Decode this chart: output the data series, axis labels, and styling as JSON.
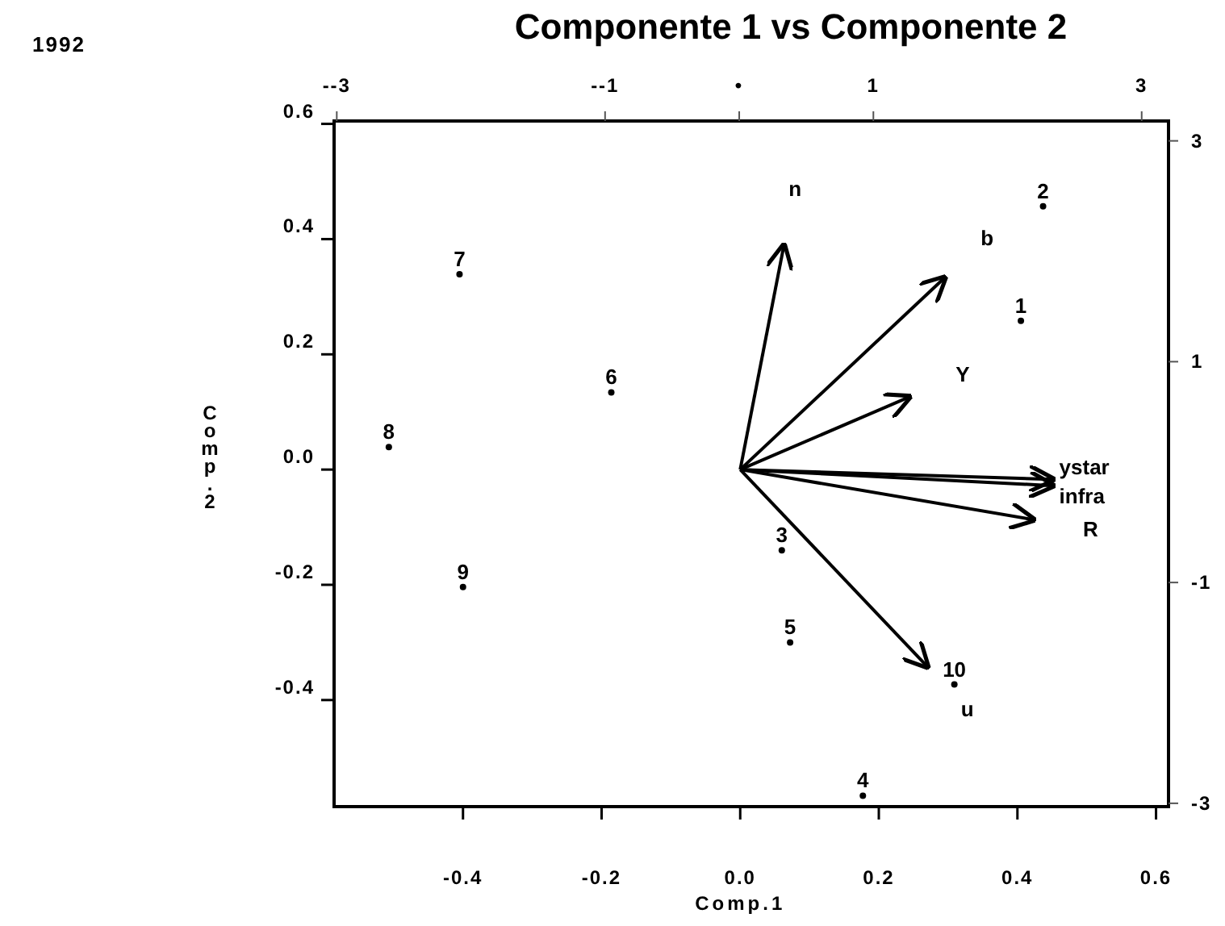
{
  "chart_data": {
    "type": "line",
    "title": "Componente 1 vs Componente 2",
    "subtitle": "1992",
    "xlabel": "Comp.1",
    "ylabel": "Comp.2",
    "xlim": [
      -0.586,
      0.618
    ],
    "ylim": [
      -0.585,
      0.605
    ],
    "xticks": [
      -0.4,
      -0.2,
      {
        "value": 0,
        "label": "0.0"
      },
      0.2,
      0.4,
      0.6
    ],
    "yticks": [
      -0.4,
      -0.2,
      {
        "value": 0,
        "label": "0.0"
      },
      0.2,
      0.4,
      0.6
    ],
    "x2lim": [
      -3.02,
      3.2
    ],
    "x2ticks": [
      {
        "value": -3,
        "label": "--3"
      },
      {
        "value": -1,
        "label": "--1"
      },
      {
        "value": 0,
        "label": "•"
      },
      1,
      3
    ],
    "y2lim": [
      -3.03,
      3.18
    ],
    "y2ticks": [
      3,
      1,
      -1,
      -3
    ],
    "grid": false,
    "legend": false,
    "annotations": [
      {
        "text": "1",
        "x": 0.405,
        "y": 0.258
      },
      {
        "text": "2",
        "x": 0.437,
        "y": 0.457
      },
      {
        "text": "3",
        "x": 0.06,
        "y": -0.14
      },
      {
        "text": "4",
        "x": 0.177,
        "y": -0.566
      },
      {
        "text": "5",
        "x": 0.072,
        "y": -0.3
      },
      {
        "text": "6",
        "x": -0.186,
        "y": 0.134
      },
      {
        "text": "7",
        "x": -0.405,
        "y": 0.339
      },
      {
        "text": "8",
        "x": -0.507,
        "y": 0.039
      },
      {
        "text": "9",
        "x": -0.4,
        "y": -0.204
      },
      {
        "text": "10",
        "x": 0.309,
        "y": -0.373
      }
    ],
    "series": [
      {
        "type": "scatter",
        "marker": "circle",
        "color": "#000000",
        "x": [
          0.405,
          0.437,
          0.06,
          0.177,
          0.072,
          -0.186,
          -0.405,
          -0.507,
          -0.4,
          0.309
        ],
        "values": [
          0.258,
          0.457,
          -0.14,
          -0.566,
          -0.3,
          0.134,
          0.339,
          0.039,
          -0.204,
          -0.373
        ]
      },
      {
        "name": "n",
        "color": "#000000",
        "x": [
          0,
          0.063
        ],
        "values": [
          0,
          0.389
        ]
      },
      {
        "name": "b",
        "color": "#000000",
        "x": [
          0,
          0.295
        ],
        "values": [
          0,
          0.333
        ]
      },
      {
        "name": "Y",
        "color": "#000000",
        "x": [
          0,
          0.244
        ],
        "values": [
          0,
          0.126
        ]
      },
      {
        "name": "ystar",
        "color": "#000000",
        "x": [
          0,
          0.451
        ],
        "values": [
          0,
          -0.017
        ]
      },
      {
        "name": "infra",
        "color": "#000000",
        "x": [
          0,
          0.451
        ],
        "values": [
          0,
          -0.028
        ]
      },
      {
        "name": "R",
        "color": "#000000",
        "x": [
          0,
          0.423
        ],
        "values": [
          0,
          -0.087
        ]
      },
      {
        "name": "u",
        "color": "#000000",
        "x": [
          0,
          0.27
        ],
        "values": [
          0,
          -0.342
        ]
      }
    ]
  }
}
